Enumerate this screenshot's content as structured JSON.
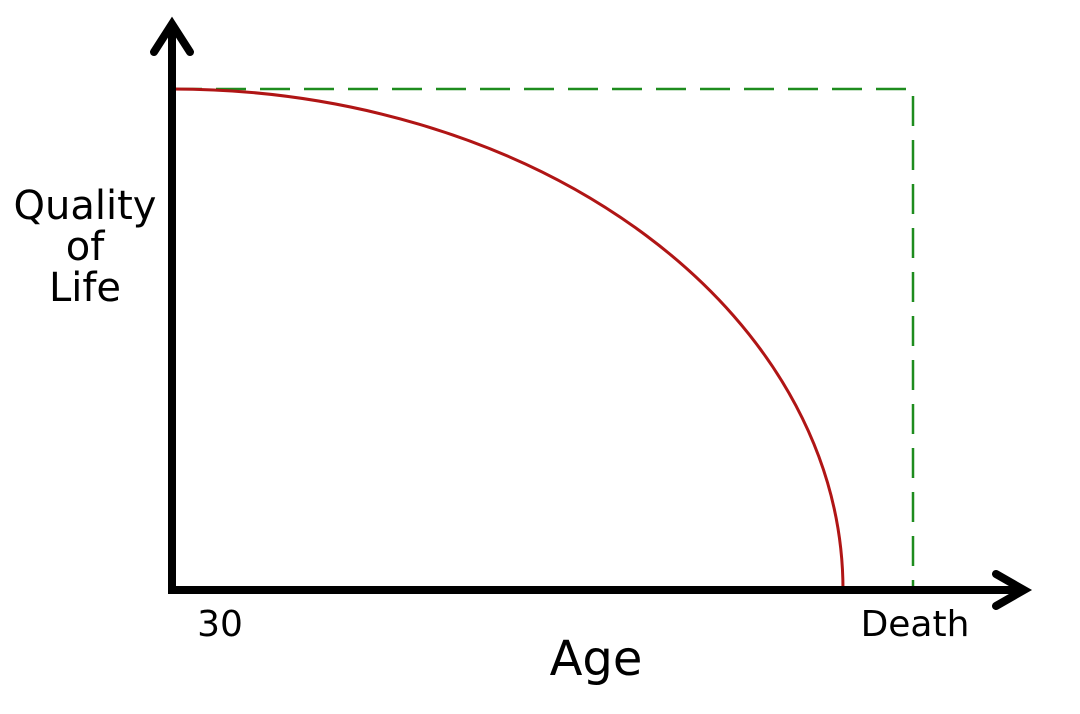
{
  "axes": {
    "y_label": [
      "Quality",
      "of",
      "Life"
    ],
    "x_start": "30",
    "x_end": "Death",
    "x_label": "Age"
  }
}
